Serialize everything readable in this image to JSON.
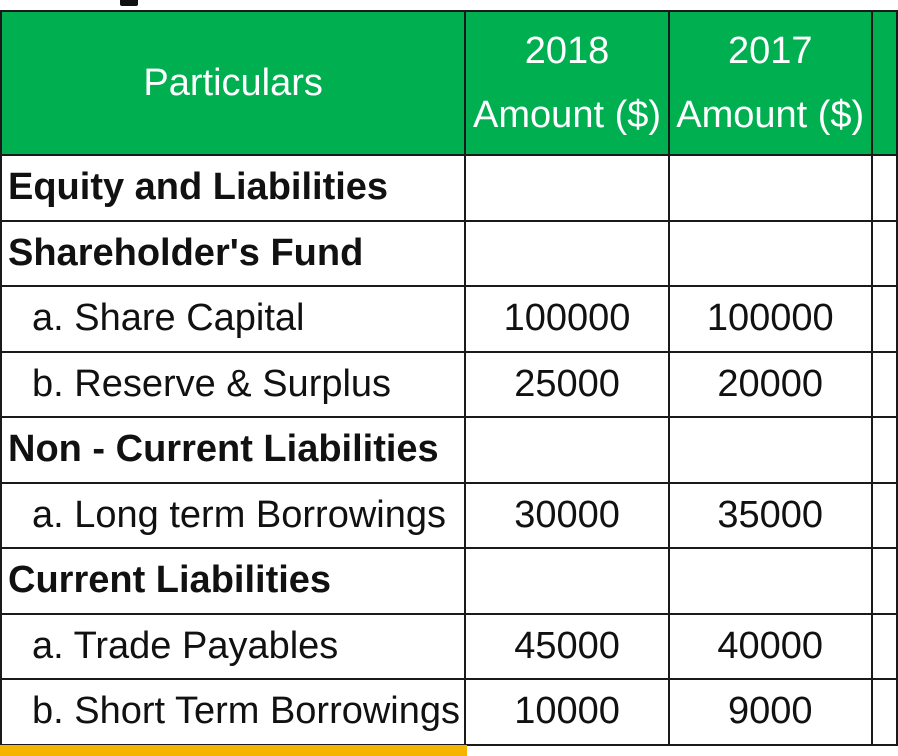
{
  "table": {
    "headers": {
      "particulars": "Particulars",
      "col1_year": "2018",
      "col1_unit": "Amount ($)",
      "col2_year": "2017",
      "col2_unit": "Amount ($)"
    },
    "rows": [
      {
        "label": "Equity and Liabilities",
        "v2018": "",
        "v2017": ""
      },
      {
        "label": "Shareholder's Fund",
        "v2018": "",
        "v2017": ""
      },
      {
        "label": "a. Share Capital",
        "v2018": "100000",
        "v2017": "100000"
      },
      {
        "label": "b. Reserve & Surplus",
        "v2018": "25000",
        "v2017": "20000"
      },
      {
        "label": "Non - Current Liabilities",
        "v2018": "",
        "v2017": ""
      },
      {
        "label": "a. Long term Borrowings",
        "v2018": "30000",
        "v2017": "35000"
      },
      {
        "label": "Current Liabilities",
        "v2018": "",
        "v2017": ""
      },
      {
        "label": "a. Trade Payables",
        "v2018": "45000",
        "v2017": "40000"
      },
      {
        "label": "b. Short Term Borrowings",
        "v2018": "10000",
        "v2017": "9000"
      }
    ]
  },
  "colors": {
    "header_bg": "#00b050",
    "header_text": "#ffffff",
    "footer_accent": "#f4b400"
  }
}
